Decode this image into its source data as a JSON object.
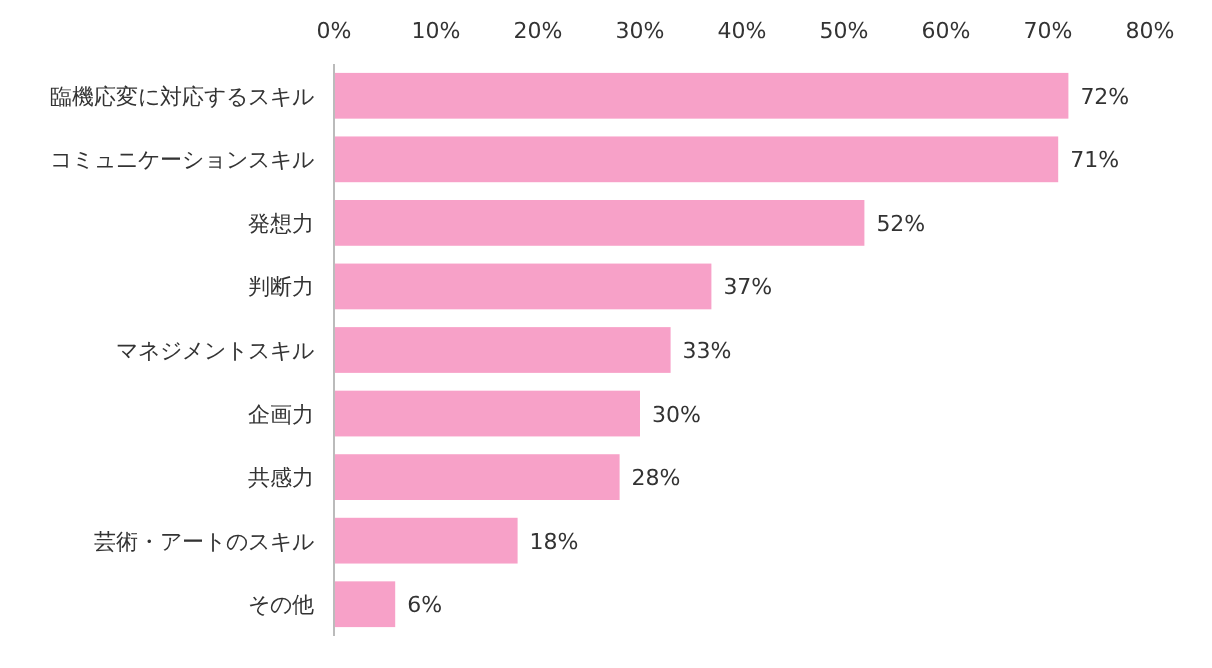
{
  "chart_data": {
    "type": "bar",
    "orientation": "horizontal",
    "categories": [
      "臨機応変に対応するスキル",
      "コミュニケーションスキル",
      "発想力",
      "判断力",
      "マネジメントスキル",
      "企画力",
      "共感力",
      "芸術・アートのスキル",
      "その他"
    ],
    "values": [
      72,
      71,
      52,
      37,
      33,
      30,
      28,
      18,
      6
    ],
    "value_labels": [
      "72%",
      "71%",
      "52%",
      "37%",
      "33%",
      "30%",
      "28%",
      "18%",
      "6%"
    ],
    "color": "#f7a1c8",
    "xlim": [
      0,
      80
    ],
    "xticks": [
      {
        "value": 0,
        "label": "0%"
      },
      {
        "value": 10,
        "label": "10%"
      },
      {
        "value": 20,
        "label": "20%"
      },
      {
        "value": 30,
        "label": "30%"
      },
      {
        "value": 40,
        "label": "40%"
      },
      {
        "value": 50,
        "label": "50%"
      },
      {
        "value": 60,
        "label": "60%"
      },
      {
        "value": 70,
        "label": "70%"
      },
      {
        "value": 80,
        "label": "80%"
      }
    ],
    "grid": false
  }
}
